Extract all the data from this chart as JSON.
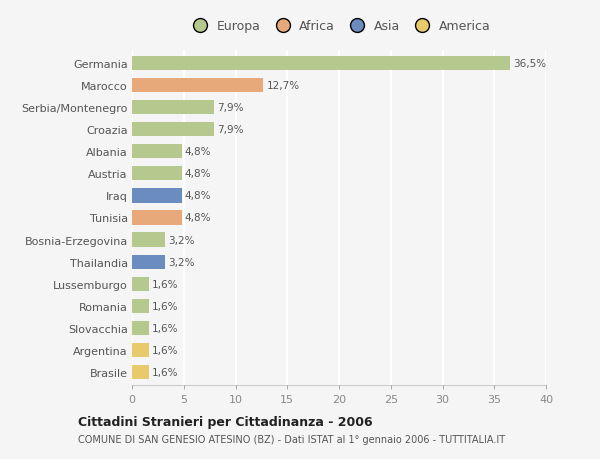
{
  "categories": [
    "Germania",
    "Marocco",
    "Serbia/Montenegro",
    "Croazia",
    "Albania",
    "Austria",
    "Iraq",
    "Tunisia",
    "Bosnia-Erzegovina",
    "Thailandia",
    "Lussemburgo",
    "Romania",
    "Slovacchia",
    "Argentina",
    "Brasile"
  ],
  "values": [
    36.5,
    12.7,
    7.9,
    7.9,
    4.8,
    4.8,
    4.8,
    4.8,
    3.2,
    3.2,
    1.6,
    1.6,
    1.6,
    1.6,
    1.6
  ],
  "labels": [
    "36,5%",
    "12,7%",
    "7,9%",
    "7,9%",
    "4,8%",
    "4,8%",
    "4,8%",
    "4,8%",
    "3,2%",
    "3,2%",
    "1,6%",
    "1,6%",
    "1,6%",
    "1,6%",
    "1,6%"
  ],
  "colors": [
    "#b5c98e",
    "#e8a97a",
    "#b5c98e",
    "#b5c98e",
    "#b5c98e",
    "#b5c98e",
    "#6b8cbf",
    "#e8a97a",
    "#b5c98e",
    "#6b8cbf",
    "#b5c98e",
    "#b5c98e",
    "#b5c98e",
    "#e8c96b",
    "#e8c96b"
  ],
  "legend_labels": [
    "Europa",
    "Africa",
    "Asia",
    "America"
  ],
  "legend_colors": [
    "#b5c98e",
    "#e8a97a",
    "#6b8cbf",
    "#e8c96b"
  ],
  "title": "Cittadini Stranieri per Cittadinanza - 2006",
  "subtitle": "COMUNE DI SAN GENESIO ATESINO (BZ) - Dati ISTAT al 1° gennaio 2006 - TUTTITALIA.IT",
  "xlim": [
    0,
    40
  ],
  "xticks": [
    0,
    5,
    10,
    15,
    20,
    25,
    30,
    35,
    40
  ],
  "background_color": "#f5f5f5",
  "bar_height": 0.65
}
